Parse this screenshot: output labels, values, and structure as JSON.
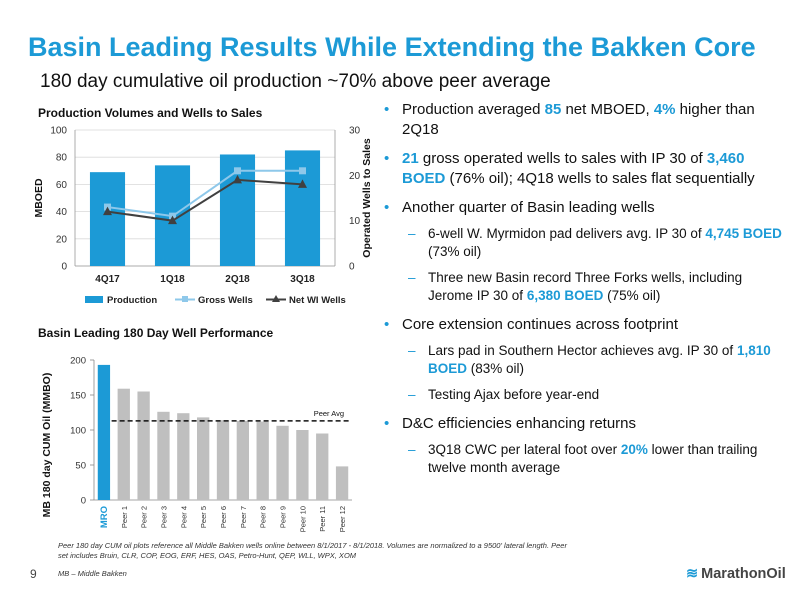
{
  "header": {
    "title": "Basin Leading Results While Extending the Bakken Core",
    "subtitle": "180 day cumulative oil production ~70% above peer average"
  },
  "colors": {
    "accent": "#1c9ad6",
    "gray_bar": "#bfbfbf",
    "line_gross": "#8ec8ea",
    "line_net": "#404040"
  },
  "chart_data": [
    {
      "type": "bar",
      "title": "Production Volumes and Wells to Sales",
      "categories": [
        "4Q17",
        "1Q18",
        "2Q18",
        "3Q18"
      ],
      "series": [
        {
          "name": "Production",
          "kind": "bar",
          "axis": "left",
          "values": [
            69,
            74,
            82,
            85
          ]
        },
        {
          "name": "Gross Wells",
          "kind": "line",
          "axis": "right",
          "values": [
            13,
            11,
            21,
            21
          ]
        },
        {
          "name": "Net WI Wells",
          "kind": "line",
          "axis": "right",
          "values": [
            12,
            10,
            19,
            18
          ]
        }
      ],
      "ylabel": "MBOED",
      "y2label": "Operated Wells to Sales",
      "ylim": [
        0,
        100
      ],
      "y2lim": [
        0,
        30
      ],
      "yticks": [
        "0",
        "20",
        "40",
        "60",
        "80",
        "100"
      ],
      "y2ticks": [
        "0",
        "10",
        "20",
        "30"
      ],
      "legend": "bottom"
    },
    {
      "type": "bar",
      "title": "Basin Leading 180 Day Well Performance",
      "categories": [
        "MRO",
        "Peer 1",
        "Peer 2",
        "Peer 3",
        "Peer 4",
        "Peer 5",
        "Peer 6",
        "Peer 7",
        "Peer 8",
        "Peer 9",
        "Peer 10",
        "Peer 11",
        "Peer 12"
      ],
      "values": [
        193,
        159,
        155,
        126,
        124,
        118,
        114,
        113,
        112,
        106,
        100,
        95,
        48
      ],
      "highlight": "MRO",
      "reference": {
        "label": "Peer Avg",
        "value": 113
      },
      "ylabel": "MB 180 day CUM Oil (MMBO)",
      "ylim": [
        0,
        200
      ],
      "yticks": [
        "0",
        "50",
        "100",
        "150",
        "200"
      ]
    }
  ],
  "bullets": [
    {
      "parts": [
        [
          "Production averaged ",
          false
        ],
        [
          "85",
          true
        ],
        [
          " net MBOED, ",
          false
        ],
        [
          "4%",
          true
        ],
        [
          " higher than 2Q18",
          false
        ]
      ],
      "subs": []
    },
    {
      "parts": [
        [
          "21",
          true
        ],
        [
          " gross operated wells to sales with IP 30 of ",
          false
        ],
        [
          "3,460 BOED",
          true
        ],
        [
          " (76% oil); 4Q18 wells to sales flat sequentially",
          false
        ]
      ],
      "subs": []
    },
    {
      "parts": [
        [
          "Another quarter of Basin leading wells",
          false
        ]
      ],
      "subs": [
        [
          [
            "6-well W. Myrmidon pad delivers avg. IP 30 of ",
            false
          ],
          [
            "4,745 BOED",
            true
          ],
          [
            " (73% oil)",
            false
          ]
        ],
        [
          [
            "Three new Basin record Three Forks wells, including Jerome IP 30 of ",
            false
          ],
          [
            "6,380 BOED",
            true
          ],
          [
            " (75% oil)",
            false
          ]
        ]
      ]
    },
    {
      "parts": [
        [
          "Core extension continues across footprint",
          false
        ]
      ],
      "subs": [
        [
          [
            "Lars pad in Southern Hector achieves avg. IP 30 of ",
            false
          ],
          [
            "1,810 BOED",
            true
          ],
          [
            " (83% oil)",
            false
          ]
        ],
        [
          [
            "Testing Ajax before year-end",
            false
          ]
        ]
      ]
    },
    {
      "parts": [
        [
          "D&C efficiencies enhancing returns",
          false
        ]
      ],
      "subs": [
        [
          [
            "3Q18 CWC per lateral foot over ",
            false
          ],
          [
            "20%",
            true
          ],
          [
            " lower than trailing twelve month average",
            false
          ]
        ]
      ]
    }
  ],
  "footer": {
    "footnote": "Peer 180 day CUM oil plots reference all Middle Bakken wells online between 8/1/2017 - 8/1/2018. Volumes are normalized to a 9500' lateral length. Peer set includes Bruin, CLR, COP, EOG, ERF, HES, OAS, Petro-Hunt, QEP, WLL, WPX, XOM",
    "footnote2": "MB – Middle Bakken",
    "page_number": "9",
    "logo_text": "MarathonOil",
    "logo_icon": "marathon-wave-icon"
  }
}
